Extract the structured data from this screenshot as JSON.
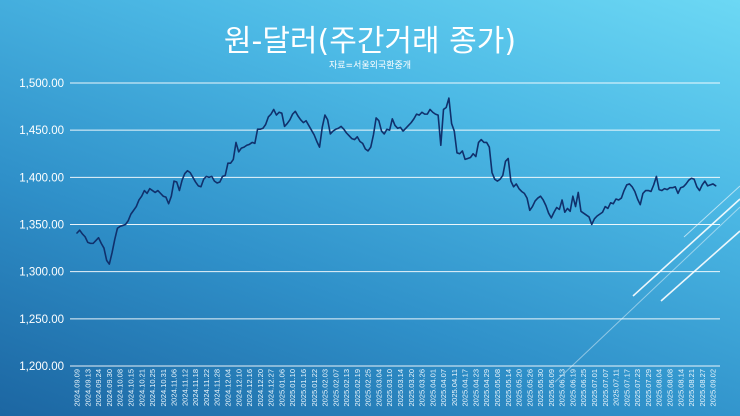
{
  "colors": {
    "line": "#10306c",
    "gridline": "#ffffff",
    "text": "#ffffff"
  },
  "chart_data": {
    "type": "line",
    "title": "원-달러(주간거래 종가)",
    "subtitle": "자료=서울외국환중개",
    "ylim": [
      1200,
      1500
    ],
    "y_ticks": [
      1500,
      1450,
      1400,
      1350,
      1300,
      1250,
      1200
    ],
    "y_tick_labels": [
      "1,500.00",
      "1,450.00",
      "1,400.00",
      "1,350.00",
      "1,300.00",
      "1,250.00",
      "1,200.00"
    ],
    "grid": true,
    "legend": "none",
    "x_tick_labels": [
      "2024.09.09",
      "2024.09.13",
      "2024.09.24",
      "2024.09.30",
      "2024.10.08",
      "2024.10.15",
      "2024.10.21",
      "2024.10.25",
      "2024.10.31",
      "2024.11.06",
      "2024.11.12",
      "2024.11.18",
      "2024.11.22",
      "2024.11.28",
      "2024.12.04",
      "2024.12.10",
      "2024.12.16",
      "2024.12.20",
      "2024.12.27",
      "2025.01.06",
      "2025.01.10",
      "2025.01.16",
      "2025.01.22",
      "2025.02.03",
      "2025.02.07",
      "2025.02.13",
      "2025.02.19",
      "2025.02.25",
      "2025.03.04",
      "2025.03.10",
      "2025.03.14",
      "2025.03.20",
      "2025.03.26",
      "2025.04.01",
      "2025.04.07",
      "2025.04.11",
      "2025.04.17",
      "2025.04.23",
      "2025.04.29",
      "2025.05.08",
      "2025.05.14",
      "2025.05.20",
      "2025.05.26",
      "2025.05.30",
      "2025.06.09",
      "2025.06.13",
      "2025.06.19",
      "2025.06.25",
      "2025.07.01",
      "2025.07.07",
      "2025.07.11",
      "2025.07.17",
      "2025.07.23",
      "2025.07.29",
      "2025.08.04",
      "2025.08.08",
      "2025.08.14",
      "2025.08.21",
      "2025.08.27",
      "2025.09.02"
    ],
    "series": [
      {
        "values": [
          1341,
          1344,
          1340,
          1337,
          1331,
          1330,
          1330,
          1333,
          1336,
          1330,
          1325,
          1312,
          1308,
          1320,
          1334,
          1346,
          1348,
          1349,
          1350,
          1354,
          1361,
          1365,
          1369,
          1376,
          1380,
          1386,
          1383,
          1388,
          1386,
          1384,
          1386,
          1383,
          1380,
          1379,
          1372,
          1380,
          1396,
          1395,
          1386,
          1397,
          1404,
          1407,
          1405,
          1400,
          1395,
          1391,
          1390,
          1398,
          1401,
          1400,
          1401,
          1396,
          1394,
          1395,
          1401,
          1402,
          1415,
          1415,
          1419,
          1437,
          1427,
          1431,
          1432,
          1434,
          1435,
          1437,
          1436,
          1451,
          1451,
          1452,
          1456,
          1464,
          1467,
          1472,
          1466,
          1469,
          1468,
          1454,
          1457,
          1461,
          1467,
          1470,
          1465,
          1461,
          1458,
          1460,
          1455,
          1450,
          1445,
          1438,
          1432,
          1453,
          1466,
          1461,
          1446,
          1449,
          1451,
          1452,
          1454,
          1451,
          1447,
          1444,
          1441,
          1440,
          1443,
          1438,
          1436,
          1430,
          1428,
          1432,
          1445,
          1463,
          1460,
          1449,
          1446,
          1451,
          1450,
          1462,
          1455,
          1452,
          1453,
          1449,
          1452,
          1455,
          1458,
          1462,
          1467,
          1466,
          1469,
          1467,
          1467,
          1472,
          1469,
          1467,
          1466,
          1434,
          1472,
          1474,
          1484,
          1457,
          1449,
          1426,
          1425,
          1428,
          1419,
          1420,
          1421,
          1425,
          1422,
          1437,
          1440,
          1437,
          1437,
          1432,
          1405,
          1398,
          1396,
          1398,
          1402,
          1417,
          1420,
          1396,
          1390,
          1393,
          1388,
          1385,
          1383,
          1378,
          1365,
          1369,
          1375,
          1378,
          1380,
          1376,
          1370,
          1362,
          1357,
          1363,
          1368,
          1366,
          1376,
          1363,
          1367,
          1364,
          1380,
          1369,
          1384,
          1364,
          1362,
          1360,
          1358,
          1350,
          1356,
          1359,
          1361,
          1363,
          1369,
          1367,
          1373,
          1372,
          1377,
          1376,
          1378,
          1386,
          1392,
          1393,
          1390,
          1385,
          1377,
          1371,
          1383,
          1386,
          1386,
          1385,
          1392,
          1401,
          1387,
          1386,
          1388,
          1387,
          1389,
          1389,
          1390,
          1383,
          1389,
          1390,
          1393,
          1397,
          1399,
          1398,
          1390,
          1386,
          1392,
          1396,
          1391,
          1392,
          1393,
          1391
        ]
      }
    ]
  }
}
